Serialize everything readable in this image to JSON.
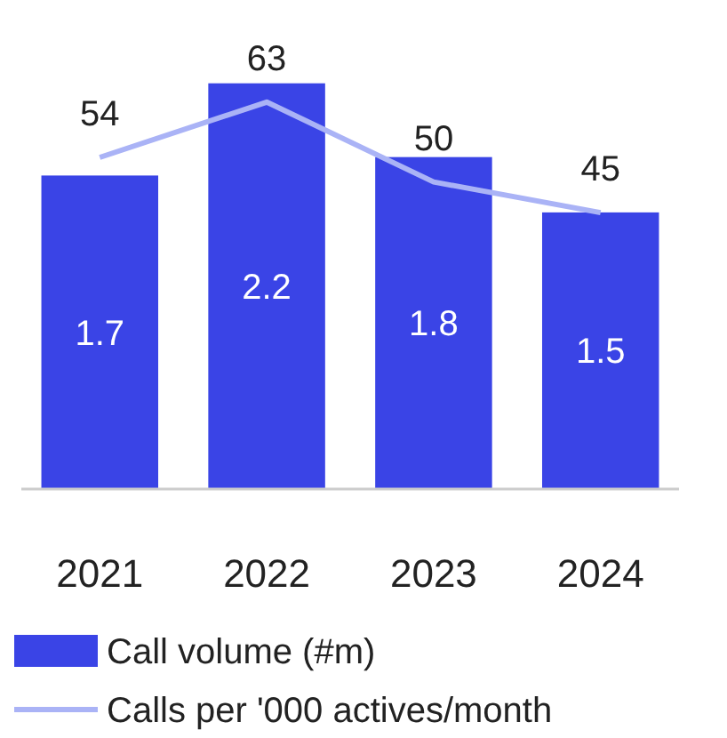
{
  "chart_data": {
    "type": "bar",
    "categories": [
      "2021",
      "2022",
      "2023",
      "2024"
    ],
    "series": [
      {
        "name": "Call volume (#m)",
        "color": "#3a44e6",
        "values": [
          1.7,
          2.2,
          1.8,
          1.5
        ]
      },
      {
        "name": "Calls per '000 actives/month",
        "type": "line",
        "axis": "y2",
        "color": "#aab3f6",
        "values": [
          54,
          63,
          50,
          45
        ]
      }
    ],
    "data_labels": true,
    "legend": "bottom",
    "grid": false,
    "marker": "none",
    "tick_labels": "x"
  }
}
